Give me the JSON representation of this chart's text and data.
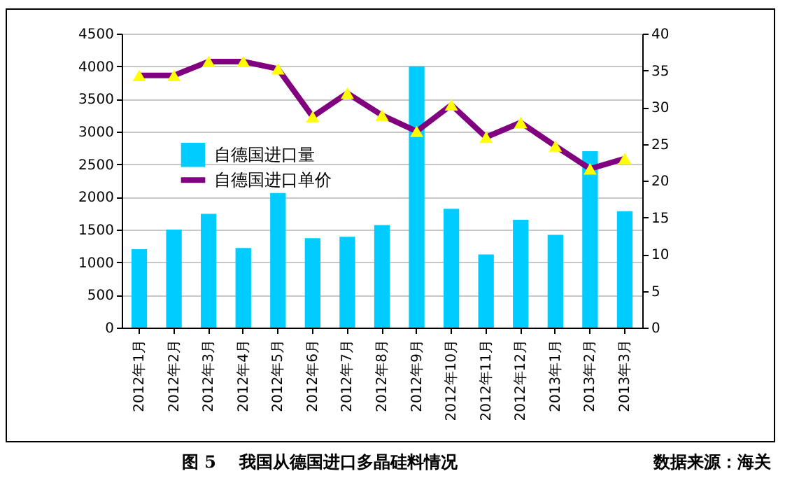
{
  "chart_data": {
    "type": "bar",
    "title": "图 5    我国从德国进口多晶硅料情况",
    "annotations": [
      "数据来源：海关"
    ],
    "categories": [
      "2012年1月",
      "2012年2月",
      "2012年3月",
      "2012年4月",
      "2012年5月",
      "2012年6月",
      "2012年7月",
      "2012年8月",
      "2012年9月",
      "2012年10月",
      "2012年11月",
      "2012年12月",
      "2013年1月",
      "2013年2月",
      "2013年3月"
    ],
    "series": [
      {
        "name": "自德国进口量",
        "color": "#00ccff",
        "values": [
          1200,
          1500,
          1740,
          1220,
          2060,
          1370,
          1390,
          1570,
          4000,
          1820,
          1120,
          1650,
          1420,
          2700,
          1780
        ]
      },
      {
        "name": "自德国进口单价",
        "type": "line",
        "axis": "y2",
        "color": "#800080",
        "values": [
          34.3,
          34.3,
          36.2,
          36.2,
          35.2,
          28.7,
          31.9,
          28.9,
          26.7,
          30.3,
          25.9,
          27.9,
          24.7,
          21.6,
          23.0
        ]
      }
    ],
    "ylim": [
      0,
      4500
    ],
    "yticks": [
      0,
      500,
      1000,
      1500,
      2000,
      2500,
      3000,
      3500,
      4000,
      4500
    ],
    "y2lim": [
      0,
      40
    ],
    "y2ticks": [
      0,
      5,
      10,
      15,
      20,
      25,
      30,
      35,
      40
    ],
    "grid": "y",
    "legend": "left",
    "marker": "triangle",
    "line_style": "solid"
  }
}
